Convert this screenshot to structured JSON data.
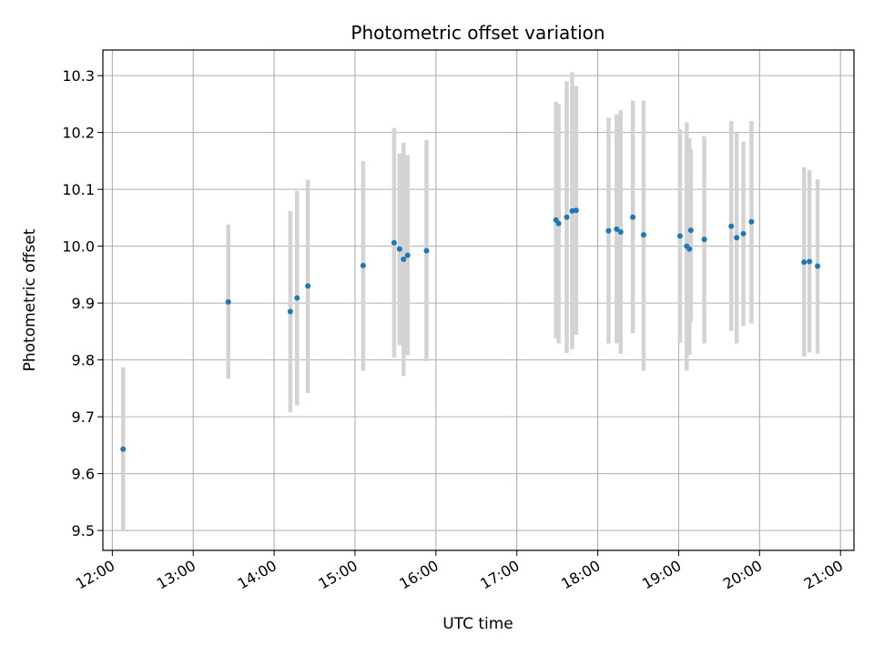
{
  "chart_data": {
    "type": "scatter",
    "title": "Photometric offset variation",
    "xlabel": "UTC time",
    "ylabel": "Photometric offset",
    "xlim": [
      "11:53",
      "21:10"
    ],
    "ylim": [
      9.465,
      10.345
    ],
    "x_ticks": [
      "12:00",
      "13:00",
      "14:00",
      "15:00",
      "16:00",
      "17:00",
      "18:00",
      "19:00",
      "20:00",
      "21:00"
    ],
    "y_ticks": [
      "9.5",
      "9.6",
      "9.7",
      "9.8",
      "9.9",
      "10.0",
      "10.1",
      "10.2",
      "10.3"
    ],
    "grid": true,
    "colors": {
      "point": "#1f77b4",
      "errorbar": "#d3d3d3",
      "grid": "#b0b0b0"
    },
    "points": [
      {
        "time": "12:08",
        "y": 9.643,
        "ylow": 9.5,
        "yhigh": 9.787
      },
      {
        "time": "13:26",
        "y": 9.902,
        "ylow": 9.767,
        "yhigh": 10.038
      },
      {
        "time": "14:12",
        "y": 9.885,
        "ylow": 9.708,
        "yhigh": 10.062
      },
      {
        "time": "14:17",
        "y": 9.909,
        "ylow": 9.72,
        "yhigh": 10.097
      },
      {
        "time": "14:25",
        "y": 9.93,
        "ylow": 9.742,
        "yhigh": 10.117
      },
      {
        "time": "15:06",
        "y": 9.966,
        "ylow": 9.781,
        "yhigh": 10.15
      },
      {
        "time": "15:29",
        "y": 10.006,
        "ylow": 9.804,
        "yhigh": 10.208
      },
      {
        "time": "15:33",
        "y": 9.995,
        "ylow": 9.826,
        "yhigh": 10.163
      },
      {
        "time": "15:36",
        "y": 9.977,
        "ylow": 9.772,
        "yhigh": 10.182
      },
      {
        "time": "15:39",
        "y": 9.984,
        "ylow": 9.808,
        "yhigh": 10.16
      },
      {
        "time": "15:53",
        "y": 9.992,
        "ylow": 9.798,
        "yhigh": 10.187
      },
      {
        "time": "17:29",
        "y": 10.046,
        "ylow": 9.838,
        "yhigh": 10.254
      },
      {
        "time": "17:31",
        "y": 10.04,
        "ylow": 9.829,
        "yhigh": 10.25
      },
      {
        "time": "17:37",
        "y": 10.051,
        "ylow": 9.812,
        "yhigh": 10.29
      },
      {
        "time": "17:41",
        "y": 10.062,
        "ylow": 9.819,
        "yhigh": 10.306
      },
      {
        "time": "17:44",
        "y": 10.063,
        "ylow": 9.844,
        "yhigh": 10.282
      },
      {
        "time": "18:08",
        "y": 10.027,
        "ylow": 9.829,
        "yhigh": 10.226
      },
      {
        "time": "18:14",
        "y": 10.03,
        "ylow": 9.829,
        "yhigh": 10.232
      },
      {
        "time": "18:17",
        "y": 10.025,
        "ylow": 9.811,
        "yhigh": 10.239
      },
      {
        "time": "18:26",
        "y": 10.051,
        "ylow": 9.847,
        "yhigh": 10.256
      },
      {
        "time": "18:34",
        "y": 10.02,
        "ylow": 9.781,
        "yhigh": 10.256
      },
      {
        "time": "19:01",
        "y": 10.018,
        "ylow": 9.83,
        "yhigh": 10.206
      },
      {
        "time": "19:06",
        "y": 10.0,
        "ylow": 9.781,
        "yhigh": 10.218
      },
      {
        "time": "19:09",
        "y": 10.028,
        "ylow": 9.867,
        "yhigh": 10.17
      },
      {
        "time": "19:08",
        "y": 9.995,
        "ylow": 9.809,
        "yhigh": 10.19
      },
      {
        "time": "19:19",
        "y": 10.012,
        "ylow": 9.829,
        "yhigh": 10.193
      },
      {
        "time": "19:39",
        "y": 10.035,
        "ylow": 9.851,
        "yhigh": 10.22
      },
      {
        "time": "19:43",
        "y": 10.015,
        "ylow": 9.829,
        "yhigh": 10.199
      },
      {
        "time": "19:48",
        "y": 10.022,
        "ylow": 9.86,
        "yhigh": 10.184
      },
      {
        "time": "19:54",
        "y": 10.043,
        "ylow": 9.864,
        "yhigh": 10.22
      },
      {
        "time": "20:33",
        "y": 9.972,
        "ylow": 9.806,
        "yhigh": 10.139
      },
      {
        "time": "20:37",
        "y": 9.973,
        "ylow": 9.813,
        "yhigh": 10.134
      },
      {
        "time": "20:43",
        "y": 9.965,
        "ylow": 9.811,
        "yhigh": 10.118
      }
    ]
  }
}
